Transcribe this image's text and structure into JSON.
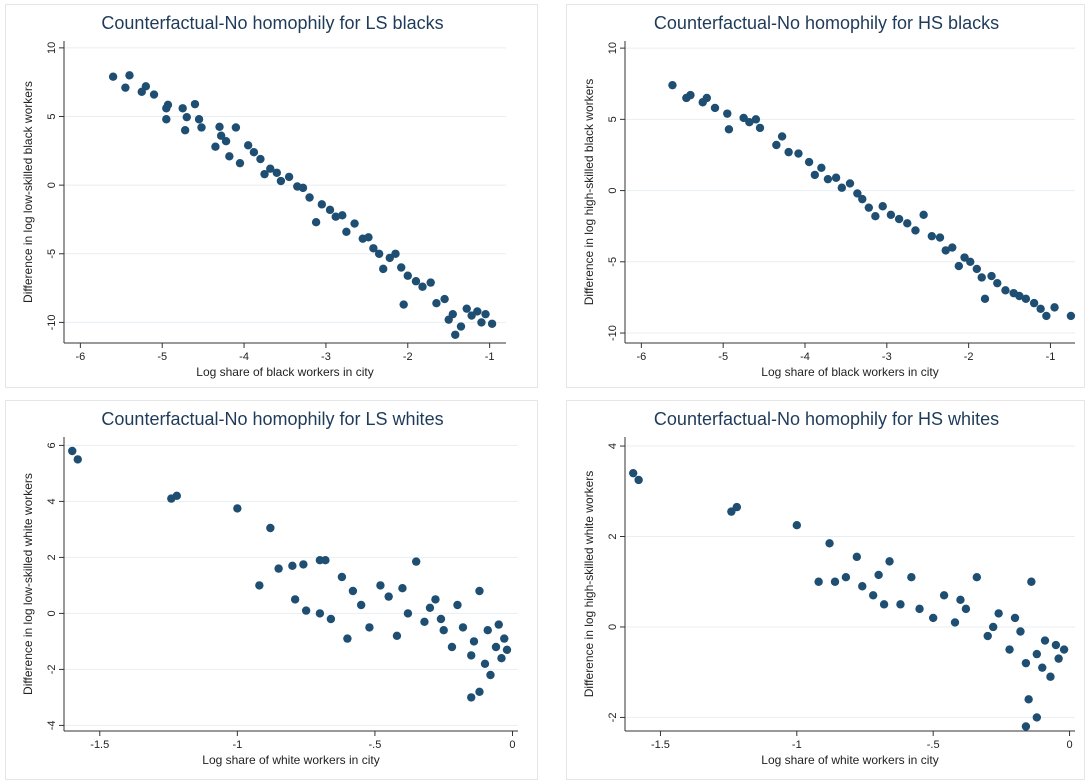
{
  "chart_data": [
    {
      "type": "scatter",
      "title": "Counterfactual-No homophily for LS blacks",
      "xlabel": "Log share of black workers in city",
      "ylabel": "Difference in log low-skilled black workers",
      "xlim": [
        -6.2,
        -0.8
      ],
      "ylim": [
        -11.5,
        10.5
      ],
      "xticks": [
        -6,
        -5,
        -4,
        -3,
        -2,
        -1
      ],
      "yticks": [
        -10,
        -5,
        0,
        5,
        10
      ],
      "grid": true,
      "legend": "none",
      "marker_color": "#1f4e73",
      "points": [
        [
          -5.6,
          7.9
        ],
        [
          -5.45,
          7.1
        ],
        [
          -5.4,
          8.0
        ],
        [
          -5.25,
          6.8
        ],
        [
          -5.2,
          7.2
        ],
        [
          -5.1,
          6.6
        ],
        [
          -4.95,
          5.6
        ],
        [
          -4.95,
          4.8
        ],
        [
          -4.93,
          5.85
        ],
        [
          -4.75,
          5.6
        ],
        [
          -4.72,
          4.0
        ],
        [
          -4.7,
          4.95
        ],
        [
          -4.6,
          5.9
        ],
        [
          -4.55,
          4.8
        ],
        [
          -4.52,
          4.2
        ],
        [
          -4.35,
          2.8
        ],
        [
          -4.3,
          4.25
        ],
        [
          -4.28,
          3.6
        ],
        [
          -4.22,
          3.2
        ],
        [
          -4.18,
          2.1
        ],
        [
          -4.1,
          4.2
        ],
        [
          -4.05,
          1.6
        ],
        [
          -3.95,
          2.9
        ],
        [
          -3.88,
          2.4
        ],
        [
          -3.8,
          1.9
        ],
        [
          -3.75,
          0.8
        ],
        [
          -3.68,
          1.2
        ],
        [
          -3.6,
          0.9
        ],
        [
          -3.55,
          0.3
        ],
        [
          -3.45,
          0.6
        ],
        [
          -3.35,
          -0.1
        ],
        [
          -3.28,
          -0.2
        ],
        [
          -3.2,
          -0.9
        ],
        [
          -3.12,
          -2.7
        ],
        [
          -3.05,
          -1.4
        ],
        [
          -2.95,
          -1.8
        ],
        [
          -2.88,
          -2.3
        ],
        [
          -2.8,
          -2.2
        ],
        [
          -2.75,
          -3.4
        ],
        [
          -2.65,
          -2.8
        ],
        [
          -2.55,
          -3.9
        ],
        [
          -2.48,
          -3.8
        ],
        [
          -2.42,
          -4.6
        ],
        [
          -2.35,
          -5.0
        ],
        [
          -2.3,
          -6.1
        ],
        [
          -2.22,
          -5.3
        ],
        [
          -2.15,
          -5.0
        ],
        [
          -2.08,
          -6.0
        ],
        [
          -2.05,
          -8.7
        ],
        [
          -2.0,
          -6.6
        ],
        [
          -1.9,
          -7.0
        ],
        [
          -1.82,
          -7.4
        ],
        [
          -1.72,
          -7.1
        ],
        [
          -1.65,
          -8.6
        ],
        [
          -1.55,
          -8.3
        ],
        [
          -1.5,
          -9.8
        ],
        [
          -1.45,
          -9.4
        ],
        [
          -1.42,
          -10.9
        ],
        [
          -1.35,
          -10.3
        ],
        [
          -1.28,
          -9.0
        ],
        [
          -1.22,
          -9.5
        ],
        [
          -1.15,
          -9.2
        ],
        [
          -1.1,
          -10.0
        ],
        [
          -1.05,
          -9.4
        ],
        [
          -0.97,
          -10.1
        ]
      ]
    },
    {
      "type": "scatter",
      "title": "Counterfactual-No homophily for HS blacks",
      "xlabel": "Log share of black workers in city",
      "ylabel": "Difference in log high-skilled black workers",
      "xlim": [
        -6.2,
        -0.7
      ],
      "ylim": [
        -10.7,
        10.5
      ],
      "xticks": [
        -6,
        -5,
        -4,
        -3,
        -2,
        -1
      ],
      "yticks": [
        -10,
        -5,
        0,
        5,
        10
      ],
      "grid": true,
      "legend": "none",
      "marker_color": "#1f4e73",
      "points": [
        [
          -5.62,
          7.4
        ],
        [
          -5.45,
          6.5
        ],
        [
          -5.4,
          6.7
        ],
        [
          -5.25,
          6.2
        ],
        [
          -5.2,
          6.5
        ],
        [
          -5.1,
          5.8
        ],
        [
          -4.95,
          5.4
        ],
        [
          -4.93,
          4.3
        ],
        [
          -4.75,
          5.1
        ],
        [
          -4.68,
          4.8
        ],
        [
          -4.6,
          5.0
        ],
        [
          -4.55,
          4.4
        ],
        [
          -4.35,
          3.2
        ],
        [
          -4.28,
          3.8
        ],
        [
          -4.2,
          2.7
        ],
        [
          -4.08,
          2.6
        ],
        [
          -3.95,
          2.0
        ],
        [
          -3.88,
          1.1
        ],
        [
          -3.8,
          1.6
        ],
        [
          -3.72,
          0.8
        ],
        [
          -3.62,
          0.9
        ],
        [
          -3.55,
          0.2
        ],
        [
          -3.45,
          0.5
        ],
        [
          -3.36,
          -0.2
        ],
        [
          -3.3,
          -0.6
        ],
        [
          -3.22,
          -1.2
        ],
        [
          -3.14,
          -1.8
        ],
        [
          -3.05,
          -1.1
        ],
        [
          -2.95,
          -1.7
        ],
        [
          -2.85,
          -2.0
        ],
        [
          -2.75,
          -2.3
        ],
        [
          -2.65,
          -2.8
        ],
        [
          -2.55,
          -1.7
        ],
        [
          -2.45,
          -3.2
        ],
        [
          -2.35,
          -3.3
        ],
        [
          -2.28,
          -4.2
        ],
        [
          -2.2,
          -4.0
        ],
        [
          -2.12,
          -5.3
        ],
        [
          -2.05,
          -4.7
        ],
        [
          -1.98,
          -5.0
        ],
        [
          -1.9,
          -5.5
        ],
        [
          -1.84,
          -6.1
        ],
        [
          -1.8,
          -7.6
        ],
        [
          -1.72,
          -6.0
        ],
        [
          -1.65,
          -6.5
        ],
        [
          -1.55,
          -7.0
        ],
        [
          -1.45,
          -7.2
        ],
        [
          -1.38,
          -7.4
        ],
        [
          -1.3,
          -7.6
        ],
        [
          -1.2,
          -7.9
        ],
        [
          -1.12,
          -8.3
        ],
        [
          -1.05,
          -8.8
        ],
        [
          -0.95,
          -8.2
        ],
        [
          -0.75,
          -8.8
        ]
      ]
    },
    {
      "type": "scatter",
      "title": "Counterfactual-No homophily for LS whites",
      "xlabel": "Log share of white workers in city",
      "ylabel": "Difference in log low-skilled white workers",
      "xlim": [
        -1.63,
        0.02
      ],
      "ylim": [
        -4.2,
        6.3
      ],
      "xticks": [
        -1.5,
        -1,
        -0.5,
        0
      ],
      "xticklabels": [
        "-1.5",
        "-1",
        "-.5",
        "0"
      ],
      "yticks": [
        -4,
        -2,
        0,
        2,
        4,
        6
      ],
      "grid": true,
      "legend": "none",
      "marker_color": "#1f4e73",
      "points": [
        [
          -1.6,
          5.8
        ],
        [
          -1.58,
          5.5
        ],
        [
          -1.24,
          4.1
        ],
        [
          -1.22,
          4.2
        ],
        [
          -1.0,
          3.75
        ],
        [
          -0.88,
          3.05
        ],
        [
          -0.92,
          1.0
        ],
        [
          -0.85,
          1.6
        ],
        [
          -0.8,
          1.7
        ],
        [
          -0.76,
          1.75
        ],
        [
          -0.79,
          0.5
        ],
        [
          -0.75,
          0.1
        ],
        [
          -0.7,
          1.9
        ],
        [
          -0.68,
          1.9
        ],
        [
          -0.66,
          -0.2
        ],
        [
          -0.62,
          1.3
        ],
        [
          -0.58,
          0.8
        ],
        [
          -0.55,
          0.3
        ],
        [
          -0.52,
          -0.5
        ],
        [
          -0.48,
          1.0
        ],
        [
          -0.45,
          0.6
        ],
        [
          -0.42,
          -0.8
        ],
        [
          -0.38,
          0.0
        ],
        [
          -0.35,
          1.85
        ],
        [
          -0.32,
          -0.3
        ],
        [
          -0.28,
          0.5
        ],
        [
          -0.25,
          -0.6
        ],
        [
          -0.22,
          -1.2
        ],
        [
          -0.2,
          0.3
        ],
        [
          -0.18,
          -0.5
        ],
        [
          -0.15,
          -1.5
        ],
        [
          -0.14,
          -1.0
        ],
        [
          -0.12,
          0.8
        ],
        [
          -0.1,
          -1.8
        ],
        [
          -0.09,
          -0.6
        ],
        [
          -0.08,
          -2.2
        ],
        [
          -0.06,
          -1.2
        ],
        [
          -0.05,
          -0.4
        ],
        [
          -0.04,
          -1.6
        ],
        [
          -0.03,
          -0.9
        ],
        [
          -0.02,
          -1.3
        ],
        [
          -0.15,
          -3.0
        ],
        [
          -0.12,
          -2.8
        ],
        [
          -0.6,
          -0.9
        ],
        [
          -0.7,
          0.0
        ],
        [
          -0.4,
          0.9
        ],
        [
          -0.3,
          0.2
        ],
        [
          -0.26,
          -0.2
        ]
      ]
    },
    {
      "type": "scatter",
      "title": "Counterfactual-No homophily for HS whites",
      "xlabel": "Log share of white workers in city",
      "ylabel": "Difference in log high-skilled white workers",
      "xlim": [
        -1.63,
        0.02
      ],
      "ylim": [
        -2.3,
        4.2
      ],
      "xticks": [
        -1.5,
        -1,
        -0.5,
        0
      ],
      "xticklabels": [
        "-1.5",
        "-1",
        "-.5",
        "0"
      ],
      "yticks": [
        -2,
        0,
        2,
        4
      ],
      "grid": true,
      "legend": "none",
      "marker_color": "#1f4e73",
      "points": [
        [
          -1.6,
          3.4
        ],
        [
          -1.58,
          3.25
        ],
        [
          -1.24,
          2.55
        ],
        [
          -1.22,
          2.65
        ],
        [
          -1.0,
          2.25
        ],
        [
          -0.88,
          1.85
        ],
        [
          -0.92,
          1.0
        ],
        [
          -0.86,
          1.0
        ],
        [
          -0.82,
          1.1
        ],
        [
          -0.78,
          1.55
        ],
        [
          -0.76,
          0.9
        ],
        [
          -0.72,
          0.7
        ],
        [
          -0.7,
          1.15
        ],
        [
          -0.66,
          1.45
        ],
        [
          -0.62,
          0.5
        ],
        [
          -0.58,
          1.1
        ],
        [
          -0.55,
          0.4
        ],
        [
          -0.5,
          0.2
        ],
        [
          -0.46,
          0.7
        ],
        [
          -0.42,
          0.1
        ],
        [
          -0.38,
          0.4
        ],
        [
          -0.34,
          1.1
        ],
        [
          -0.3,
          -0.2
        ],
        [
          -0.26,
          0.3
        ],
        [
          -0.22,
          -0.5
        ],
        [
          -0.2,
          0.2
        ],
        [
          -0.18,
          -0.1
        ],
        [
          -0.16,
          -0.8
        ],
        [
          -0.14,
          1.0
        ],
        [
          -0.12,
          -0.6
        ],
        [
          -0.1,
          -0.9
        ],
        [
          -0.09,
          -0.3
        ],
        [
          -0.07,
          -1.1
        ],
        [
          -0.05,
          -0.4
        ],
        [
          -0.04,
          -0.7
        ],
        [
          -0.02,
          -0.5
        ],
        [
          -0.16,
          -2.2
        ],
        [
          -0.12,
          -2.0
        ],
        [
          -0.15,
          -1.6
        ],
        [
          -0.68,
          0.5
        ],
        [
          -0.4,
          0.6
        ],
        [
          -0.28,
          0.0
        ]
      ]
    }
  ]
}
